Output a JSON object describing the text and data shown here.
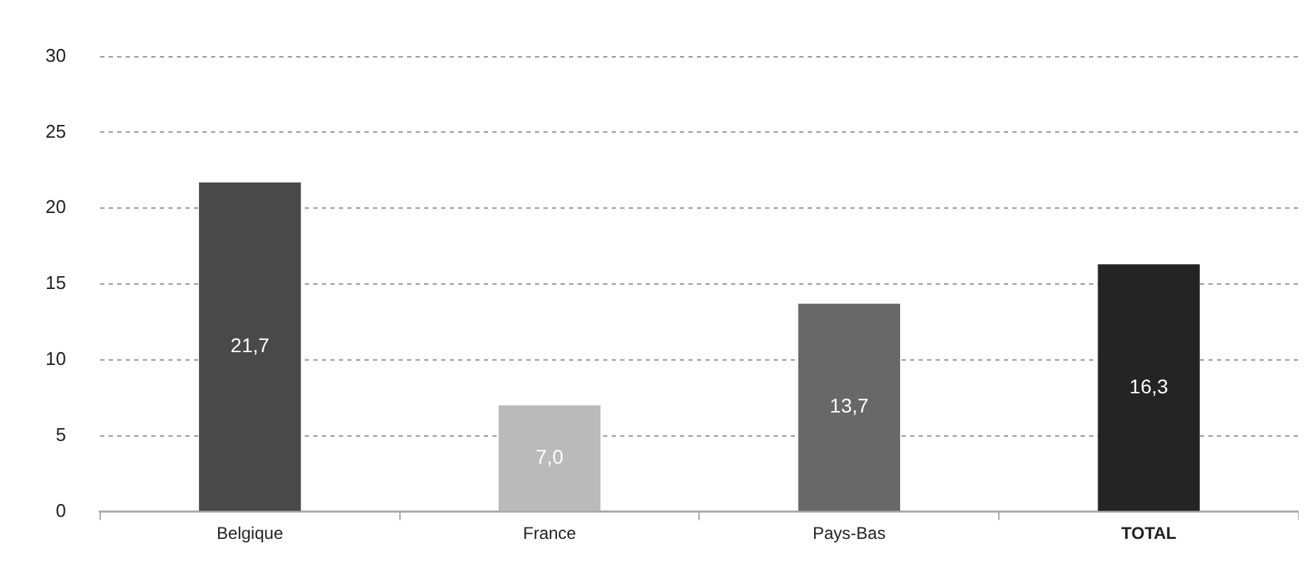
{
  "chart_data": {
    "type": "bar",
    "categories": [
      "Belgique",
      "France",
      "Pays-Bas",
      "TOTAL"
    ],
    "values": [
      21.7,
      7.0,
      13.7,
      16.3
    ],
    "colors": [
      "#494949",
      "#bababa",
      "#686868",
      "#242424"
    ],
    "value_labels": [
      "21,7",
      "7,0",
      "13,7",
      "16,3"
    ],
    "ylim": [
      0,
      30
    ],
    "yticks": [
      0,
      5,
      10,
      15,
      20,
      25,
      30
    ],
    "grid": "y",
    "legend": false
  }
}
